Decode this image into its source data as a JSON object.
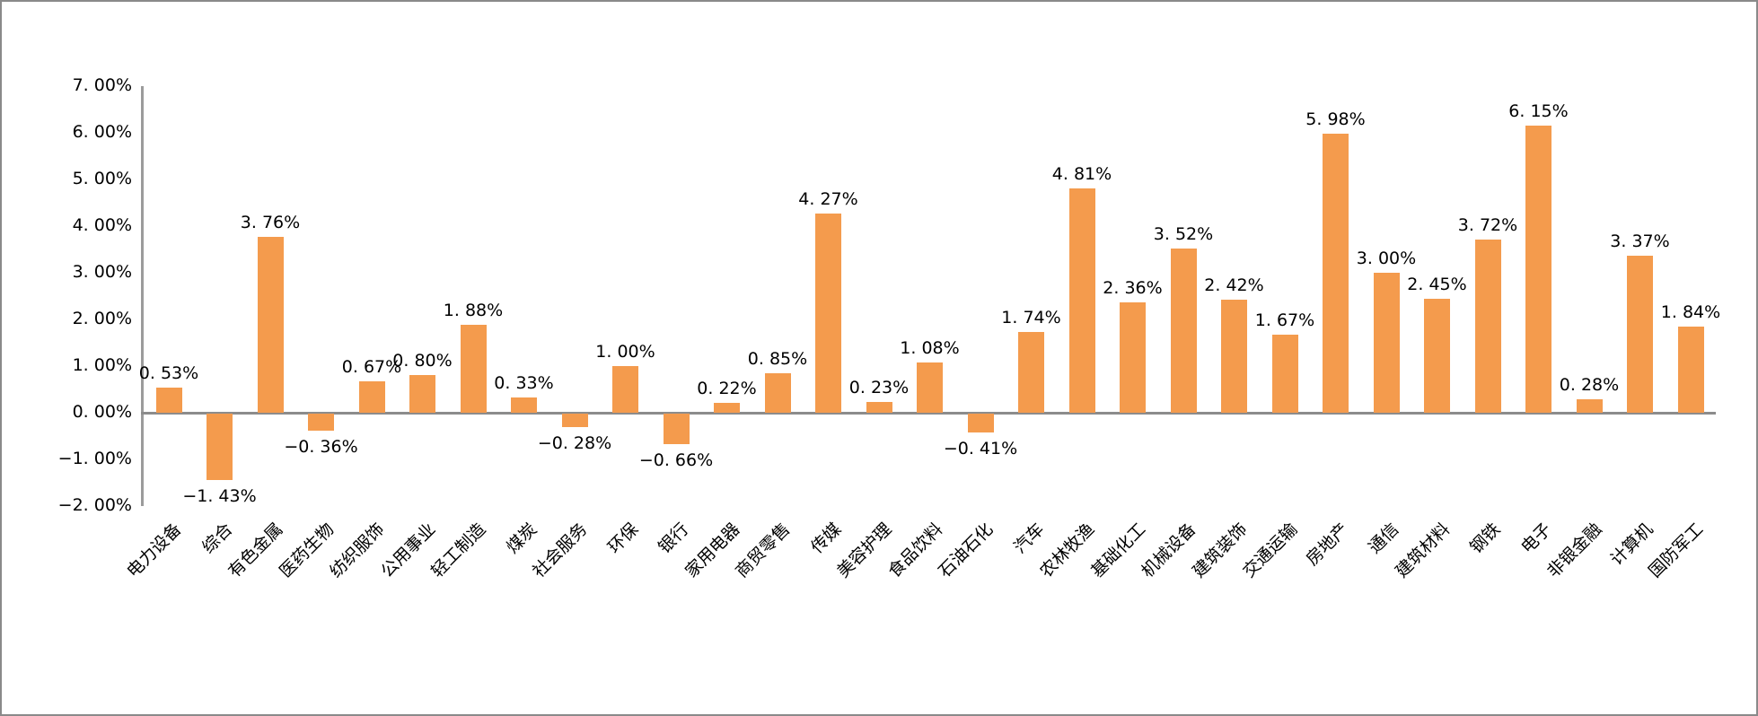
{
  "window": {
    "background": "#ffffff",
    "frame_border_color": "#8a8a8a"
  },
  "chart_data": {
    "type": "bar",
    "title": "",
    "xlabel": "",
    "ylabel": "",
    "ylim": [
      -2,
      7
    ],
    "grid": false,
    "legend": null,
    "bar_color": "#f49b4d",
    "y_axis_color": "#9b9b9b",
    "zero_line_color": "#8c8c8c",
    "y_tick_labels": [
      "7. 00%",
      "6. 00%",
      "5. 00%",
      "4. 00%",
      "3. 00%",
      "2. 00%",
      "1. 00%",
      "0. 00%",
      "−1. 00%",
      "−2. 00%"
    ],
    "y_tick_values": [
      7,
      6,
      5,
      4,
      3,
      2,
      1,
      0,
      -1,
      -2
    ],
    "categories": [
      "电力设备",
      "综合",
      "有色金属",
      "医药生物",
      "纺织服饰",
      "公用事业",
      "轻工制造",
      "煤炭",
      "社会服务",
      "环保",
      "银行",
      "家用电器",
      "商贸零售",
      "传媒",
      "美容护理",
      "食品饮料",
      "石油石化",
      "汽车",
      "农林牧渔",
      "基础化工",
      "机械设备",
      "建筑装饰",
      "交通运输",
      "房地产",
      "通信",
      "建筑材料",
      "钢铁",
      "电子",
      "非银金融",
      "计算机",
      "国防军工"
    ],
    "values": [
      0.53,
      -1.43,
      3.76,
      -0.36,
      0.67,
      0.8,
      1.88,
      0.33,
      -0.28,
      1.0,
      -0.66,
      0.22,
      0.85,
      4.27,
      0.23,
      1.08,
      -0.41,
      1.74,
      4.81,
      2.36,
      3.52,
      2.42,
      1.67,
      5.98,
      3.0,
      2.45,
      3.72,
      6.15,
      0.28,
      3.37,
      1.84
    ],
    "value_labels": [
      "0. 53%",
      "−1. 43%",
      "3. 76%",
      "−0. 36%",
      "0. 67%",
      "0. 80%",
      "1. 88%",
      "0. 33%",
      "−0. 28%",
      "1. 00%",
      "−0. 66%",
      "0. 22%",
      "0. 85%",
      "4. 27%",
      "0. 23%",
      "1. 08%",
      "−0. 41%",
      "1. 74%",
      "4. 81%",
      "2. 36%",
      "3. 52%",
      "2. 42%",
      "1. 67%",
      "5. 98%",
      "3. 00%",
      "2. 45%",
      "3. 72%",
      "6. 15%",
      "0. 28%",
      "3. 37%",
      "1. 84%"
    ]
  }
}
